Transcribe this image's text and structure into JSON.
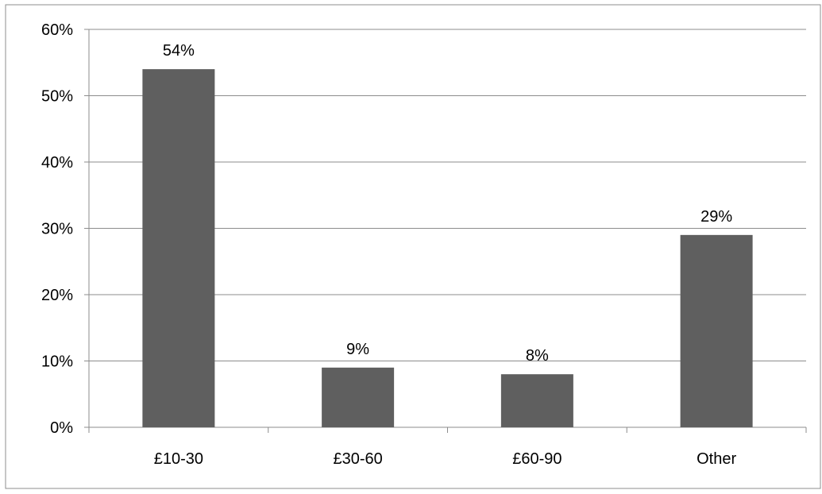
{
  "chart_data": {
    "type": "bar",
    "categories": [
      "£10-30",
      "£30-60",
      "£60-90",
      "Other"
    ],
    "values": [
      54,
      9,
      8,
      29
    ],
    "value_labels": [
      "54%",
      "9%",
      "8%",
      "29%"
    ],
    "y_ticks": [
      "0%",
      "10%",
      "20%",
      "30%",
      "40%",
      "50%",
      "60%"
    ],
    "ylim": [
      0,
      60
    ],
    "y_unit": "%",
    "grid": true,
    "legend": "none",
    "bar_color": "#5f5f5f",
    "grid_color": "#8c8c8c"
  }
}
